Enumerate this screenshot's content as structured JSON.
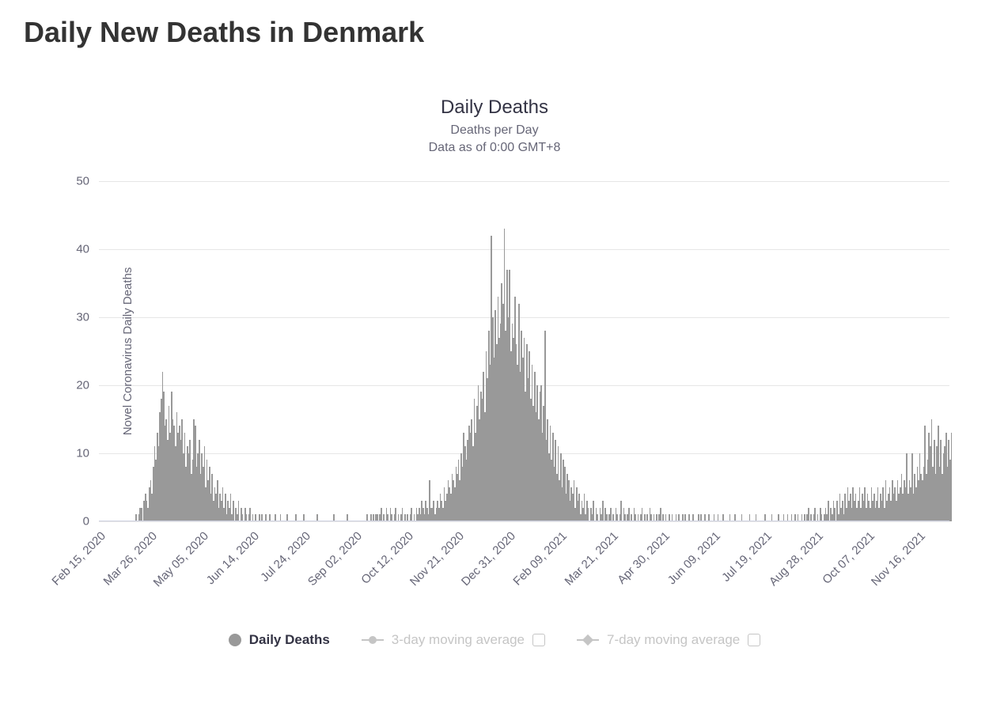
{
  "page": {
    "title": "Daily New Deaths in Denmark"
  },
  "chart": {
    "type": "bar",
    "title": "Daily Deaths",
    "subtitle_line1": "Deaths per Day",
    "subtitle_line2": "Data as of 0:00 GMT+8",
    "y_axis_title": "Novel Coronavirus Daily Deaths",
    "ylim": [
      0,
      50
    ],
    "ytick_step": 10,
    "yticks": [
      0,
      10,
      20,
      30,
      40,
      50
    ],
    "bar_color": "#999999",
    "grid_color": "#e6e6e6",
    "baseline_color": "#cfd3e3",
    "background_color": "#ffffff",
    "title_fontsize": 24,
    "subtitle_fontsize": 16,
    "axis_label_fontsize": 15,
    "legend_fontsize": 17,
    "xticks": [
      {
        "pos": 0.0,
        "label": "Feb 15, 2020"
      },
      {
        "pos": 0.0603,
        "label": "Mar 26, 2020"
      },
      {
        "pos": 0.1205,
        "label": "May 05, 2020"
      },
      {
        "pos": 0.1808,
        "label": "Jun 14, 2020"
      },
      {
        "pos": 0.241,
        "label": "Jul 24, 2020"
      },
      {
        "pos": 0.3013,
        "label": "Sep 02, 2020"
      },
      {
        "pos": 0.3615,
        "label": "Oct 12, 2020"
      },
      {
        "pos": 0.4218,
        "label": "Nov 21, 2020"
      },
      {
        "pos": 0.482,
        "label": "Dec 31, 2020"
      },
      {
        "pos": 0.5423,
        "label": "Feb 09, 2021"
      },
      {
        "pos": 0.6025,
        "label": "Mar 21, 2021"
      },
      {
        "pos": 0.6628,
        "label": "Apr 30, 2021"
      },
      {
        "pos": 0.723,
        "label": "Jun 09, 2021"
      },
      {
        "pos": 0.7833,
        "label": "Jul 19, 2021"
      },
      {
        "pos": 0.8435,
        "label": "Aug 28, 2021"
      },
      {
        "pos": 0.9038,
        "label": "Oct 07, 2021"
      },
      {
        "pos": 0.964,
        "label": "Nov 16, 2021"
      }
    ],
    "values": [
      0,
      0,
      0,
      0,
      0,
      0,
      0,
      0,
      0,
      0,
      0,
      0,
      0,
      0,
      0,
      0,
      0,
      0,
      0,
      0,
      0,
      0,
      0,
      0,
      0,
      0,
      0,
      0,
      1,
      0,
      1,
      2,
      2,
      0,
      3,
      4,
      3,
      2,
      5,
      6,
      4,
      8,
      11,
      9,
      13,
      11,
      16,
      18,
      22,
      19,
      14,
      15,
      12,
      17,
      13,
      19,
      15,
      14,
      11,
      16,
      13,
      14,
      12,
      15,
      10,
      13,
      8,
      11,
      10,
      12,
      7,
      9,
      15,
      14,
      8,
      10,
      12,
      7,
      10,
      8,
      11,
      5,
      9,
      6,
      8,
      4,
      7,
      3,
      5,
      4,
      6,
      2,
      4,
      3,
      5,
      2,
      4,
      1,
      3,
      2,
      4,
      1,
      3,
      0,
      2,
      1,
      3,
      0,
      2,
      1,
      0,
      2,
      1,
      0,
      1,
      2,
      0,
      1,
      0,
      1,
      0,
      0,
      1,
      0,
      1,
      0,
      0,
      1,
      0,
      0,
      1,
      0,
      0,
      0,
      1,
      0,
      0,
      0,
      1,
      0,
      0,
      0,
      0,
      1,
      0,
      0,
      0,
      0,
      0,
      0,
      1,
      0,
      0,
      0,
      0,
      0,
      1,
      0,
      0,
      0,
      0,
      0,
      0,
      0,
      0,
      0,
      1,
      0,
      0,
      0,
      0,
      0,
      0,
      0,
      0,
      0,
      0,
      0,
      0,
      1,
      0,
      0,
      0,
      0,
      0,
      0,
      0,
      0,
      0,
      1,
      0,
      0,
      0,
      0,
      0,
      0,
      0,
      0,
      0,
      0,
      0,
      0,
      0,
      0,
      1,
      0,
      0,
      1,
      0,
      1,
      0,
      1,
      1,
      0,
      1,
      2,
      0,
      1,
      0,
      2,
      1,
      0,
      2,
      1,
      0,
      1,
      2,
      0,
      1,
      0,
      1,
      2,
      0,
      1,
      0,
      1,
      0,
      1,
      2,
      0,
      1,
      0,
      2,
      1,
      2,
      1,
      3,
      2,
      1,
      3,
      2,
      1,
      6,
      2,
      2,
      3,
      1,
      2,
      3,
      2,
      4,
      3,
      2,
      5,
      3,
      4,
      6,
      5,
      4,
      7,
      6,
      5,
      8,
      7,
      9,
      6,
      10,
      8,
      13,
      11,
      9,
      12,
      14,
      13,
      15,
      11,
      18,
      13,
      17,
      20,
      15,
      19,
      18,
      22,
      16,
      25,
      21,
      28,
      23,
      42,
      30,
      24,
      31,
      26,
      33,
      27,
      29,
      35,
      32,
      43,
      28,
      37,
      30,
      37,
      25,
      29,
      27,
      33,
      26,
      23,
      32,
      22,
      28,
      24,
      27,
      19,
      26,
      21,
      25,
      18,
      23,
      17,
      22,
      16,
      20,
      15,
      19,
      20,
      13,
      17,
      28,
      12,
      15,
      10,
      14,
      9,
      13,
      8,
      12,
      7,
      11,
      6,
      10,
      5,
      9,
      8,
      4,
      7,
      6,
      3,
      5,
      4,
      6,
      2,
      5,
      3,
      4,
      1,
      3,
      2,
      4,
      1,
      3,
      2,
      0,
      2,
      1,
      3,
      0,
      2,
      1,
      0,
      2,
      1,
      3,
      0,
      2,
      1,
      0,
      1,
      2,
      0,
      1,
      0,
      2,
      1,
      0,
      1,
      3,
      0,
      2,
      1,
      0,
      1,
      2,
      0,
      1,
      0,
      2,
      1,
      0,
      1,
      0,
      1,
      2,
      0,
      1,
      0,
      1,
      0,
      2,
      1,
      0,
      1,
      0,
      1,
      0,
      1,
      2,
      0,
      1,
      0,
      1,
      0,
      0,
      1,
      0,
      1,
      0,
      0,
      1,
      0,
      1,
      0,
      0,
      1,
      0,
      1,
      0,
      0,
      1,
      0,
      0,
      1,
      0,
      0,
      0,
      1,
      0,
      1,
      0,
      0,
      1,
      0,
      0,
      1,
      0,
      0,
      0,
      1,
      0,
      0,
      1,
      0,
      0,
      0,
      1,
      0,
      0,
      0,
      0,
      1,
      0,
      0,
      0,
      1,
      0,
      0,
      0,
      0,
      1,
      0,
      0,
      0,
      0,
      0,
      1,
      0,
      0,
      0,
      0,
      1,
      0,
      0,
      0,
      0,
      0,
      0,
      1,
      0,
      0,
      0,
      0,
      1,
      0,
      0,
      0,
      0,
      1,
      0,
      0,
      0,
      1,
      0,
      0,
      1,
      0,
      0,
      1,
      0,
      0,
      1,
      0,
      1,
      0,
      0,
      1,
      0,
      1,
      0,
      1,
      2,
      0,
      1,
      0,
      1,
      2,
      0,
      1,
      0,
      2,
      1,
      0,
      1,
      2,
      1,
      3,
      0,
      2,
      1,
      3,
      2,
      0,
      3,
      1,
      4,
      2,
      3,
      1,
      4,
      2,
      5,
      3,
      4,
      2,
      5,
      3,
      4,
      2,
      3,
      5,
      2,
      4,
      3,
      5,
      2,
      4,
      3,
      2,
      5,
      3,
      4,
      2,
      3,
      5,
      2,
      4,
      3,
      5,
      2,
      6,
      3,
      4,
      5,
      3,
      6,
      4,
      5,
      3,
      6,
      4,
      5,
      7,
      4,
      6,
      5,
      10,
      4,
      6,
      5,
      10,
      4,
      7,
      5,
      8,
      6,
      10,
      7,
      6,
      8,
      14,
      7,
      9,
      13,
      11,
      15,
      8,
      12,
      7,
      11,
      14,
      8,
      12,
      7,
      10,
      11,
      13,
      8,
      12,
      9,
      13
    ]
  },
  "legend": {
    "items": [
      {
        "label": "Daily Deaths",
        "style": "dot",
        "active": true
      },
      {
        "label": "3-day moving average",
        "style": "line-circle",
        "active": false,
        "checkbox": true
      },
      {
        "label": "7-day moving average",
        "style": "line-diamond",
        "active": false,
        "checkbox": true
      }
    ]
  }
}
